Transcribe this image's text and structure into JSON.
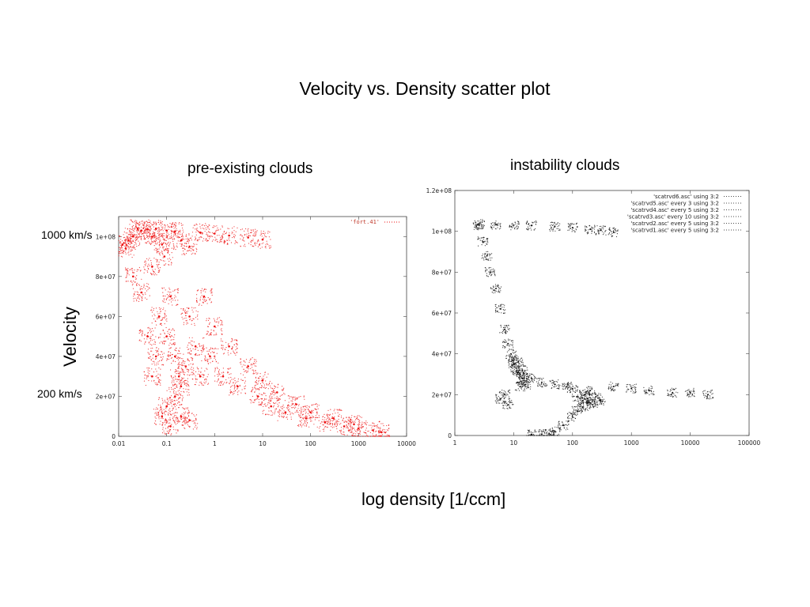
{
  "slide": {
    "title": "Velocity vs. Density scatter plot",
    "left_subtitle": "pre-existing clouds",
    "right_subtitle": "instability clouds",
    "label_1000": "1000 km/s",
    "label_200": "200 km/s",
    "velocity_label": "Velocity",
    "xaxis_label": "log density  [1/ccm]"
  },
  "chart_data": [
    {
      "type": "scatter",
      "panel": "pre-existing clouds",
      "x_scale": "log",
      "xlim": [
        0.01,
        10000
      ],
      "ylim": [
        0,
        110000000
      ],
      "x_ticks": [
        0.01,
        0.1,
        1,
        10,
        100,
        1000,
        10000
      ],
      "x_tick_labels": [
        "0.01",
        "0.1",
        "1",
        "10",
        "100",
        "1000",
        "10000"
      ],
      "y_ticks": [
        0,
        20000000,
        40000000,
        60000000,
        80000000,
        100000000
      ],
      "y_tick_labels": [
        "0",
        "2e+07",
        "4e+07",
        "6e+07",
        "8e+07",
        "1e+08"
      ],
      "color": "#ee1111",
      "series": [
        {
          "name": "'fort.41'",
          "points": [
            [
              0.012,
              96000000
            ],
            [
              0.014,
              94000000
            ],
            [
              0.016,
              98000000
            ],
            [
              0.02,
              100000000
            ],
            [
              0.025,
              104000000
            ],
            [
              0.03,
              103000000
            ],
            [
              0.04,
              103500000
            ],
            [
              0.05,
              100000000
            ],
            [
              0.06,
              104000000
            ],
            [
              0.08,
              96000000
            ],
            [
              0.1,
              103000000
            ],
            [
              0.15,
              102500000
            ],
            [
              0.2,
              98000000
            ],
            [
              0.3,
              95000000
            ],
            [
              0.5,
              102000000
            ],
            [
              1,
              101500000
            ],
            [
              2,
              100500000
            ],
            [
              5,
              99500000
            ],
            [
              10,
              98500000
            ],
            [
              0.02,
              80000000
            ],
            [
              0.03,
              72000000
            ],
            [
              0.05,
              85000000
            ],
            [
              0.07,
              60000000
            ],
            [
              0.09,
              90000000
            ],
            [
              0.1,
              50000000
            ],
            [
              0.12,
              70000000
            ],
            [
              0.15,
              40000000
            ],
            [
              0.18,
              30000000
            ],
            [
              0.2,
              25000000
            ],
            [
              0.25,
              35000000
            ],
            [
              0.3,
              60000000
            ],
            [
              0.4,
              45000000
            ],
            [
              0.5,
              30000000
            ],
            [
              0.6,
              70000000
            ],
            [
              0.8,
              40000000
            ],
            [
              1,
              55000000
            ],
            [
              1.5,
              30000000
            ],
            [
              2,
              45000000
            ],
            [
              3,
              25000000
            ],
            [
              5,
              35000000
            ],
            [
              8,
              20000000
            ],
            [
              10,
              28000000
            ],
            [
              15,
              15000000
            ],
            [
              20,
              22000000
            ],
            [
              30,
              12000000
            ],
            [
              50,
              16000000
            ],
            [
              80,
              9000000
            ],
            [
              100,
              12000000
            ],
            [
              200,
              7000000
            ],
            [
              300,
              9000000
            ],
            [
              500,
              5000000
            ],
            [
              800,
              6000000
            ],
            [
              1000,
              4000000
            ],
            [
              2000,
              3000000
            ],
            [
              3000,
              2000000
            ],
            [
              0.08,
              10000000
            ],
            [
              0.1,
              15000000
            ],
            [
              0.12,
              5000000
            ],
            [
              0.15,
              20000000
            ],
            [
              0.2,
              10000000
            ],
            [
              0.3,
              8000000
            ],
            [
              0.05,
              30000000
            ],
            [
              0.04,
              50000000
            ],
            [
              0.06,
              40000000
            ]
          ]
        }
      ]
    },
    {
      "type": "scatter",
      "panel": "instability clouds",
      "x_scale": "log",
      "xlim": [
        1,
        100000
      ],
      "ylim": [
        0,
        120000000
      ],
      "x_ticks": [
        1,
        10,
        100,
        1000,
        10000,
        100000
      ],
      "x_tick_labels": [
        "1",
        "10",
        "100",
        "1000",
        "10000",
        "100000"
      ],
      "y_ticks": [
        0,
        20000000,
        40000000,
        60000000,
        80000000,
        100000000,
        120000000
      ],
      "y_tick_labels": [
        "0",
        "2e+07",
        "4e+07",
        "6e+07",
        "8e+07",
        "1e+08",
        "1.2e+08"
      ],
      "color": "#111111",
      "series": [
        {
          "name": "'scatrvd6.asc' using 3:2",
          "points": [
            [
              2.5,
              103500000
            ],
            [
              5,
              103200000
            ],
            [
              10,
              103000000
            ],
            [
              20,
              102800000
            ],
            [
              50,
              102300000
            ],
            [
              100,
              101800000
            ],
            [
              200,
              101000000
            ],
            [
              300,
              100500000
            ],
            [
              500,
              99500000
            ]
          ]
        },
        {
          "name": "'scatrvd5.asc' every 3 using 3:2",
          "points": [
            [
              2.6,
              103000000
            ],
            [
              3,
              95000000
            ],
            [
              3.5,
              88000000
            ],
            [
              4,
              80000000
            ],
            [
              5,
              72000000
            ],
            [
              6,
              62000000
            ],
            [
              7,
              52000000
            ],
            [
              8,
              45000000
            ],
            [
              9,
              40000000
            ],
            [
              10,
              37000000
            ]
          ]
        },
        {
          "name": "'scatrvd4.asc' every 5 using 3:2",
          "points": [
            [
              10,
              35000000
            ],
            [
              11,
              33000000
            ],
            [
              12,
              31000000
            ],
            [
              13,
              30000000
            ],
            [
              14,
              28000000
            ],
            [
              15,
              27000000
            ],
            [
              12,
              36000000
            ],
            [
              14,
              32000000
            ],
            [
              16,
              25000000
            ],
            [
              13,
              24000000
            ]
          ]
        },
        {
          "name": "'scatrvd3.asc' every 10 using 3:2",
          "points": [
            [
              20,
              28000000
            ],
            [
              30,
              26000000
            ],
            [
              50,
              25000000
            ],
            [
              80,
              24000000
            ],
            [
              100,
              23000000
            ],
            [
              200,
              22000000
            ],
            [
              500,
              24000000
            ],
            [
              1000,
              23000000
            ],
            [
              2000,
              22000000
            ],
            [
              5000,
              21000000
            ],
            [
              10000,
              21000000
            ],
            [
              20000,
              20000000
            ]
          ]
        },
        {
          "name": "'scatrvd2.asc' every 5 using 3:2",
          "points": [
            [
              120,
              19000000
            ],
            [
              150,
              17000000
            ],
            [
              180,
              18000000
            ],
            [
              200,
              16000000
            ],
            [
              250,
              19000000
            ],
            [
              300,
              17000000
            ],
            [
              160,
              20000000
            ],
            [
              220,
              15000000
            ]
          ]
        },
        {
          "name": "'scatrvd1.asc' every 5 using 3:2",
          "points": [
            [
              20,
              500000
            ],
            [
              30,
              700000
            ],
            [
              40,
              1000000
            ],
            [
              50,
              2000000
            ],
            [
              70,
              5000000
            ],
            [
              100,
              9000000
            ],
            [
              120,
              12000000
            ],
            [
              150,
              14000000
            ],
            [
              8,
              15000000
            ],
            [
              7,
              20000000
            ],
            [
              6,
              18000000
            ]
          ]
        }
      ]
    }
  ]
}
